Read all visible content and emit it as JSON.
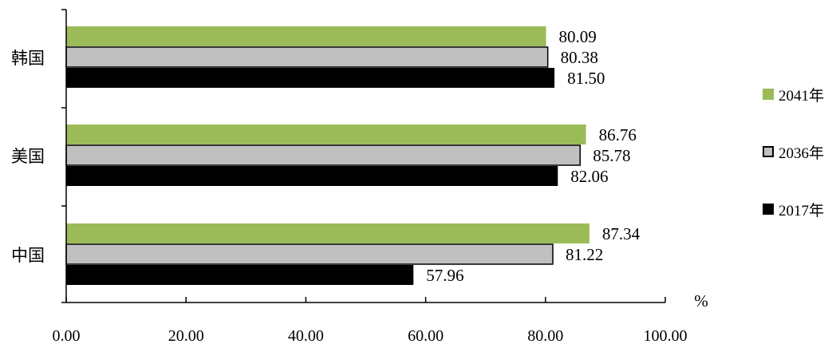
{
  "chart_data": {
    "type": "bar",
    "orientation": "horizontal",
    "categories": [
      "韩国",
      "美国",
      "中国"
    ],
    "series": [
      {
        "name": "2041年",
        "color": "#9bbb59",
        "values": [
          80.09,
          86.76,
          87.34
        ]
      },
      {
        "name": "2036年",
        "color": "#c0c0c0",
        "values": [
          80.38,
          85.78,
          81.22
        ]
      },
      {
        "name": "2017年",
        "color": "#000000",
        "values": [
          81.5,
          82.06,
          57.96
        ]
      }
    ],
    "data_labels": [
      [
        "80.09",
        "86.76",
        "87.34"
      ],
      [
        "80.38",
        "85.78",
        "81.22"
      ],
      [
        "81.50",
        "82.06",
        "57.96"
      ]
    ],
    "x_ticks": [
      "0.00",
      "20.00",
      "40.00",
      "60.00",
      "80.00",
      "100.00"
    ],
    "xlim": [
      0,
      100
    ],
    "unit": "%",
    "grid": false,
    "legend_position": "right"
  }
}
